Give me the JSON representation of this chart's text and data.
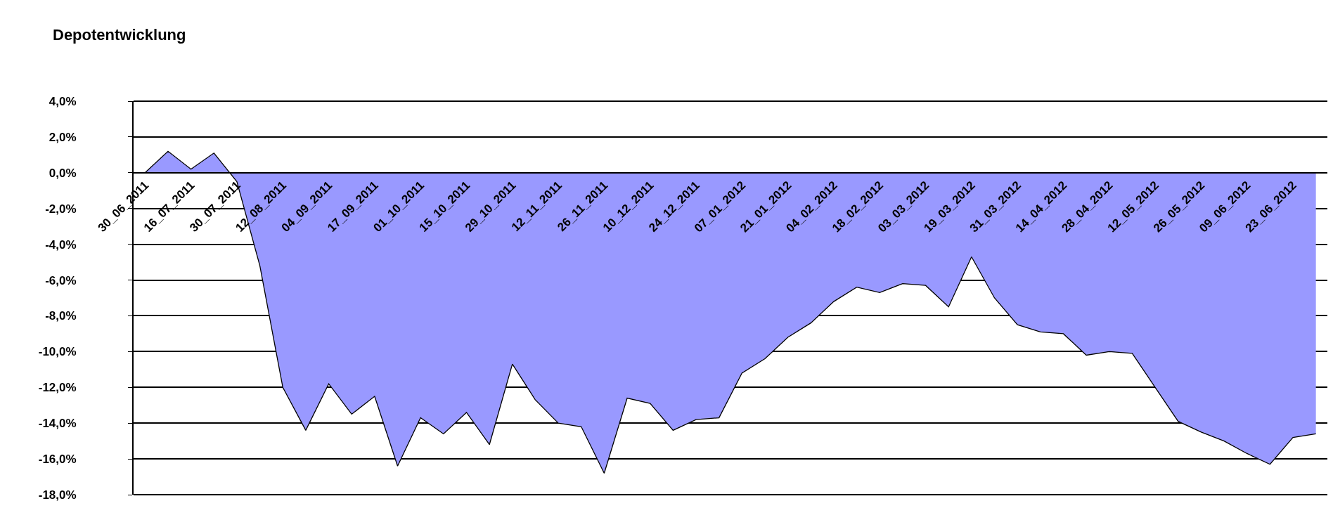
{
  "chart_data": {
    "type": "area",
    "title": "Depotentwicklung",
    "categories": [
      "30_06_2011",
      null,
      "16_07_2011",
      null,
      "30_07_2011",
      null,
      "12_08_2011",
      null,
      "04_09_2011",
      null,
      "17_09_2011",
      null,
      "01_10_2011",
      null,
      "15_10_2011",
      null,
      "29_10_2011",
      null,
      "12_11_2011",
      null,
      "26_11_2011",
      null,
      "10_12_2011",
      null,
      "24_12_2011",
      null,
      "07_01_2012",
      null,
      "21_01_2012",
      null,
      "04_02_2012",
      null,
      "18_02_2012",
      null,
      "03_03_2012",
      null,
      "19_03_2012",
      null,
      "31_03_2012",
      null,
      "14_04_2012",
      null,
      "28_04_2012",
      null,
      "12_05_2012",
      null,
      "26_05_2012",
      null,
      "09_06_2012",
      null,
      "23_06_2012",
      null
    ],
    "series": [
      {
        "color": "#9999ff",
        "values": [
          0.0,
          1.2,
          0.2,
          1.1,
          -0.5,
          -5.2,
          -12.0,
          -14.4,
          -11.8,
          -13.5,
          -12.5,
          -16.4,
          -13.7,
          -14.6,
          -13.4,
          -15.2,
          -10.7,
          -12.7,
          -14.0,
          -14.2,
          -16.8,
          -12.6,
          -12.9,
          -14.4,
          -13.8,
          -13.7,
          -11.2,
          -10.4,
          -9.2,
          -8.4,
          -7.2,
          -6.4,
          -6.7,
          -6.2,
          -6.3,
          -7.5,
          -4.7,
          -7.0,
          -8.5,
          -8.9,
          -9.0,
          -10.2,
          -10.0,
          -10.1,
          -12.0,
          -13.9,
          -14.5,
          -15.0,
          -15.7,
          -16.3,
          -14.8,
          -14.6
        ]
      }
    ],
    "ylim": [
      -18,
      4
    ],
    "yticks": [
      {
        "value": 4,
        "label": "4,0%"
      },
      {
        "value": 2,
        "label": "2,0%"
      },
      {
        "value": 0,
        "label": "0,0%"
      },
      {
        "value": -2,
        "label": "-2,0%"
      },
      {
        "value": -4,
        "label": "-4,0%"
      },
      {
        "value": -6,
        "label": "-6,0%"
      },
      {
        "value": -8,
        "label": "-8,0%"
      },
      {
        "value": -10,
        "label": "-10,0%"
      },
      {
        "value": -12,
        "label": "-12,0%"
      },
      {
        "value": -14,
        "label": "-14,0%"
      },
      {
        "value": -16,
        "label": "-16,0%"
      },
      {
        "value": -18,
        "label": "-18,0%"
      }
    ],
    "grid": "y",
    "marker": "none",
    "line_style": "solid"
  }
}
